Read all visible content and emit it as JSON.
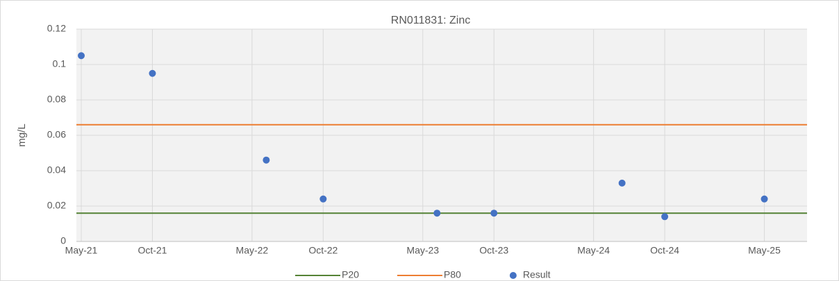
{
  "chart_data": {
    "type": "scatter",
    "title": "RN011831: Zinc",
    "ylabel": "mg/L",
    "xlim": [
      "2021-05",
      "2025-08"
    ],
    "xticks": [
      {
        "value": "2021-05",
        "label": "May-21"
      },
      {
        "value": "2021-10",
        "label": "Oct-21"
      },
      {
        "value": "2022-05",
        "label": "May-22"
      },
      {
        "value": "2022-10",
        "label": "Oct-22"
      },
      {
        "value": "2023-05",
        "label": "May-23"
      },
      {
        "value": "2023-10",
        "label": "Oct-23"
      },
      {
        "value": "2024-05",
        "label": "May-24"
      },
      {
        "value": "2024-10",
        "label": "Oct-24"
      },
      {
        "value": "2025-05",
        "label": "May-25"
      }
    ],
    "ylim": [
      0,
      0.12
    ],
    "yticks": [
      0,
      0.02,
      0.04,
      0.06,
      0.08,
      0.1,
      0.12
    ],
    "grid": true,
    "legend": "bottom",
    "series": [
      {
        "name": "P20",
        "color": "#548235",
        "kind": "hline",
        "value": 0.016
      },
      {
        "name": "P80",
        "color": "#ed7d31",
        "kind": "hline",
        "value": 0.066
      },
      {
        "name": "Result",
        "color": "#4472c4",
        "kind": "points",
        "x": [
          "2021-05",
          "2021-10",
          "2022-06",
          "2022-10",
          "2023-06",
          "2023-10",
          "2024-07",
          "2024-10",
          "2025-05"
        ],
        "values": [
          0.105,
          0.095,
          0.046,
          0.024,
          0.016,
          0.016,
          0.033,
          0.014,
          0.024
        ]
      }
    ]
  }
}
